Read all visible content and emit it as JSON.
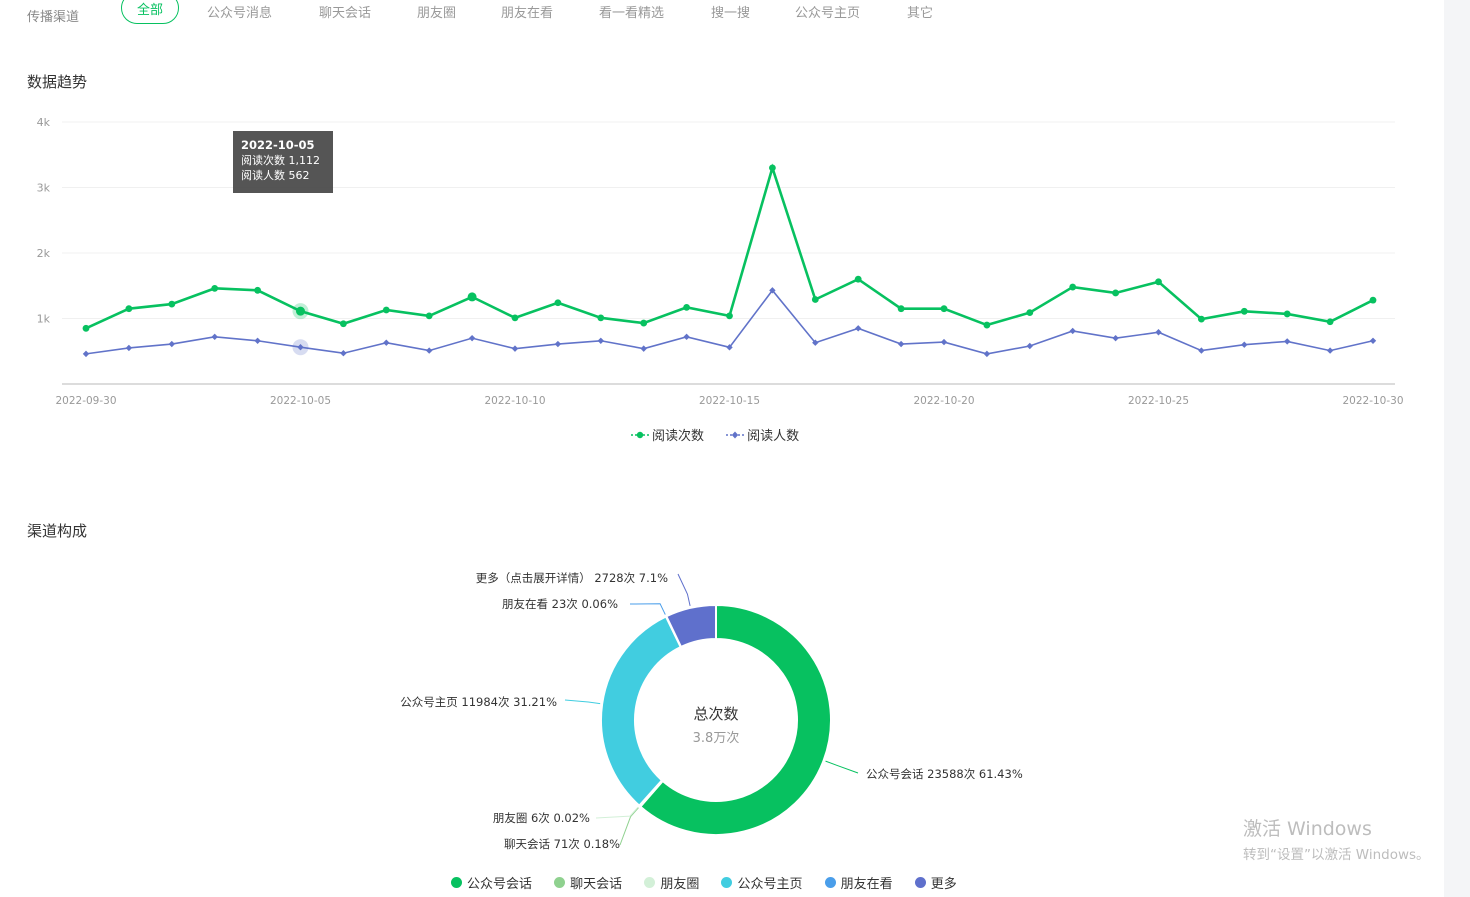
{
  "filter": {
    "label": "传播渠道",
    "tabs": [
      "全部",
      "公众号消息",
      "聊天会话",
      "朋友圈",
      "朋友在看",
      "看一看精选",
      "搜一搜",
      "公众号主页",
      "其它"
    ]
  },
  "trend": {
    "title": "数据趋势",
    "tooltip": {
      "date": "2022-10-05",
      "line1": "阅读次数 1,112",
      "line2": "阅读人数 562"
    }
  },
  "composition": {
    "title": "渠道构成",
    "center_label": "总次数",
    "center_value": "3.8万次"
  },
  "chart_data": [
    {
      "type": "line",
      "x": [
        "2022-09-30",
        "2022-10-01",
        "2022-10-02",
        "2022-10-03",
        "2022-10-04",
        "2022-10-05",
        "2022-10-06",
        "2022-10-07",
        "2022-10-08",
        "2022-10-09",
        "2022-10-10",
        "2022-10-11",
        "2022-10-12",
        "2022-10-13",
        "2022-10-14",
        "2022-10-15",
        "2022-10-16",
        "2022-10-17",
        "2022-10-18",
        "2022-10-19",
        "2022-10-20",
        "2022-10-21",
        "2022-10-22",
        "2022-10-23",
        "2022-10-24",
        "2022-10-25",
        "2022-10-26",
        "2022-10-27",
        "2022-10-28",
        "2022-10-29",
        "2022-10-30"
      ],
      "x_ticks": [
        "2022-09-30",
        "2022-10-05",
        "2022-10-10",
        "2022-10-15",
        "2022-10-20",
        "2022-10-25",
        "2022-10-30"
      ],
      "y_ticks": [
        "1k",
        "2k",
        "3k",
        "4k"
      ],
      "ylim": [
        0,
        4000
      ],
      "legend_position": "bottom-center",
      "series": [
        {
          "name": "阅读次数",
          "color": "#07c160",
          "values": [
            850,
            1150,
            1220,
            1460,
            1430,
            1112,
            920,
            1130,
            1040,
            1330,
            1010,
            1240,
            1010,
            930,
            1170,
            1040,
            3300,
            1290,
            1600,
            1150,
            1150,
            900,
            1090,
            1480,
            1390,
            1560,
            990,
            1110,
            1070,
            950,
            1280
          ]
        },
        {
          "name": "阅读人数",
          "color": "#6173c9",
          "values": [
            460,
            550,
            610,
            720,
            660,
            562,
            470,
            630,
            510,
            700,
            540,
            610,
            660,
            540,
            720,
            560,
            1430,
            630,
            850,
            610,
            640,
            460,
            580,
            810,
            700,
            790,
            510,
            600,
            650,
            510,
            660
          ]
        }
      ]
    },
    {
      "type": "pie",
      "style": "donut",
      "slices": [
        {
          "name": "公众号会话",
          "label": "公众号会话 23588次 61.43%",
          "value": 23588,
          "percent": 61.43,
          "color": "#07c160"
        },
        {
          "name": "聊天会话",
          "label": "聊天会话 71次 0.18%",
          "value": 71,
          "percent": 0.18,
          "color": "#8fd18f"
        },
        {
          "name": "朋友圈",
          "label": "朋友圈 6次 0.02%",
          "value": 6,
          "percent": 0.02,
          "color": "#d3f0d8"
        },
        {
          "name": "公众号主页",
          "label": "公众号主页 11984次 31.21%",
          "value": 11984,
          "percent": 31.21,
          "color": "#41cde0"
        },
        {
          "name": "朋友在看",
          "label": "朋友在看 23次 0.06%",
          "value": 23,
          "percent": 0.06,
          "color": "#4a9eea"
        },
        {
          "name": "更多",
          "label": "更多（点击展开详情） 2728次 7.1%",
          "value": 2728,
          "percent": 7.1,
          "color": "#5f70cc"
        }
      ],
      "legend_position": "bottom-center"
    }
  ],
  "watermark": {
    "line1": "激活 Windows",
    "line2": "转到“设置”以激活 Windows。"
  }
}
